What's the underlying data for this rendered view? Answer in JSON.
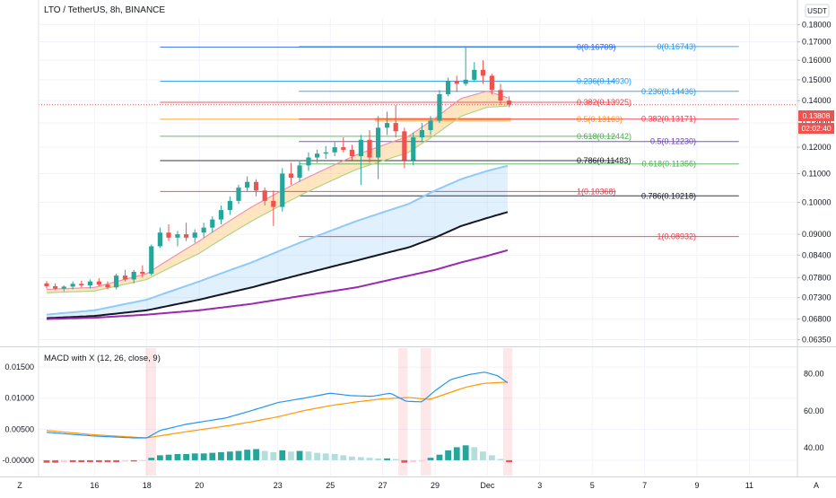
{
  "header": {
    "title": "LTO / TetherUS, 8h, BINANCE",
    "currency": "USDT"
  },
  "macd_panel": {
    "title": "MACD with X (12, 26, close, 9)",
    "left_ticks": [
      "0.01500",
      "0.01000",
      "0.00500",
      "-0.00000"
    ],
    "right_ticks": [
      "80.00",
      "60.00",
      "40.00"
    ]
  },
  "x_axis": {
    "labels": [
      "16",
      "18",
      "20",
      "23",
      "25",
      "27",
      "29",
      "Dec",
      "3",
      "5",
      "7",
      "9",
      "11"
    ],
    "corner_left": "Z",
    "corner_right": "A"
  },
  "price_axis": {
    "ticks": [
      "0.18000",
      "0.17000",
      "0.16000",
      "0.15000",
      "0.14000",
      "0.13000",
      "0.12000",
      "0.11000",
      "0.10000",
      "0.09000",
      "0.08400",
      "0.07800",
      "0.07300",
      "0.06800",
      "0.06350"
    ]
  },
  "price_badges": {
    "last_price": "0.13808",
    "countdown": "02:02:40"
  },
  "fib_set_1": [
    {
      "text": "0(0.16709)",
      "price": 0.16709,
      "color": "#2962ff"
    },
    {
      "text": "0.236(0.14930)",
      "price": 0.1493,
      "color": "#2196f3"
    },
    {
      "text": "0.382(0.13925)",
      "price": 0.13925,
      "color": "#f23645"
    },
    {
      "text": "0.5(0.13163)",
      "price": 0.13163,
      "color": "#ff9800"
    },
    {
      "text": "0.618(0.12442)",
      "price": 0.12442,
      "color": "#4caf50"
    },
    {
      "text": "0.786(0.11483)",
      "price": 0.11483,
      "color": "#131722"
    },
    {
      "text": "1(0.10368)",
      "price": 0.10368,
      "color": "#f23645"
    }
  ],
  "fib_set_2": [
    {
      "text": "0(0.16743)",
      "price": 0.16743,
      "color": "#2196f3"
    },
    {
      "text": "0.236(0.14436)",
      "price": 0.14436,
      "color": "#2196f3"
    },
    {
      "text": "0.382(0.13171)",
      "price": 0.13171,
      "color": "#f23645"
    },
    {
      "text": "0.5(0.12230)",
      "price": 0.1223,
      "color": "#673ab7"
    },
    {
      "text": "0.618(0.11356)",
      "price": 0.11356,
      "color": "#4caf50"
    },
    {
      "text": "0.786(0.10218)",
      "price": 0.10218,
      "color": "#131722"
    },
    {
      "text": "1(0.08932)",
      "price": 0.08932,
      "color": "#f23645"
    }
  ],
  "colors": {
    "up": "#26a69a",
    "down": "#ef5350",
    "macd_line": "#2196f3",
    "signal_line": "#ff9800",
    "ema_light_blue": "#90caf9",
    "ema_black": "#131722",
    "ema_purple": "#9c27b0",
    "highlight_zone": "#ffb74d"
  },
  "chart_data": {
    "type": "candlestick",
    "symbol": "LTO / TetherUS",
    "interval": "8h",
    "exchange": "BINANCE",
    "y_range": [
      0.0625,
      0.184
    ],
    "x_range_days": [
      14.0,
      12.5
    ],
    "highlight_zone": {
      "from": 0.1306,
      "to": 0.1323
    },
    "candles": [
      {
        "t": 14.17,
        "o": 0.0765,
        "h": 0.0771,
        "l": 0.0752,
        "c": 0.0758
      },
      {
        "t": 14.5,
        "o": 0.0758,
        "h": 0.0765,
        "l": 0.0748,
        "c": 0.0752
      },
      {
        "t": 14.83,
        "o": 0.0752,
        "h": 0.076,
        "l": 0.0745,
        "c": 0.0757
      },
      {
        "t": 15.17,
        "o": 0.0757,
        "h": 0.077,
        "l": 0.075,
        "c": 0.0764
      },
      {
        "t": 15.5,
        "o": 0.0764,
        "h": 0.0772,
        "l": 0.0755,
        "c": 0.076
      },
      {
        "t": 15.83,
        "o": 0.076,
        "h": 0.0775,
        "l": 0.0752,
        "c": 0.077
      },
      {
        "t": 16.17,
        "o": 0.077,
        "h": 0.0778,
        "l": 0.0758,
        "c": 0.0762
      },
      {
        "t": 16.5,
        "o": 0.0762,
        "h": 0.077,
        "l": 0.075,
        "c": 0.0755
      },
      {
        "t": 16.83,
        "o": 0.0755,
        "h": 0.079,
        "l": 0.075,
        "c": 0.0785
      },
      {
        "t": 17.17,
        "o": 0.0785,
        "h": 0.08,
        "l": 0.077,
        "c": 0.0775
      },
      {
        "t": 17.5,
        "o": 0.0775,
        "h": 0.08,
        "l": 0.0765,
        "c": 0.0795
      },
      {
        "t": 17.83,
        "o": 0.0795,
        "h": 0.0812,
        "l": 0.078,
        "c": 0.079
      },
      {
        "t": 18.17,
        "o": 0.079,
        "h": 0.087,
        "l": 0.0785,
        "c": 0.0865
      },
      {
        "t": 18.5,
        "o": 0.0865,
        "h": 0.092,
        "l": 0.086,
        "c": 0.0905
      },
      {
        "t": 18.83,
        "o": 0.0905,
        "h": 0.093,
        "l": 0.088,
        "c": 0.089
      },
      {
        "t": 19.17,
        "o": 0.089,
        "h": 0.091,
        "l": 0.0865,
        "c": 0.09
      },
      {
        "t": 19.5,
        "o": 0.09,
        "h": 0.0935,
        "l": 0.088,
        "c": 0.089
      },
      {
        "t": 19.83,
        "o": 0.089,
        "h": 0.0915,
        "l": 0.0875,
        "c": 0.0905
      },
      {
        "t": 20.17,
        "o": 0.0905,
        "h": 0.0935,
        "l": 0.089,
        "c": 0.092
      },
      {
        "t": 20.5,
        "o": 0.092,
        "h": 0.0955,
        "l": 0.0905,
        "c": 0.0945
      },
      {
        "t": 20.83,
        "o": 0.0945,
        "h": 0.099,
        "l": 0.093,
        "c": 0.0975
      },
      {
        "t": 21.17,
        "o": 0.0975,
        "h": 0.102,
        "l": 0.096,
        "c": 0.1005
      },
      {
        "t": 21.5,
        "o": 0.1005,
        "h": 0.106,
        "l": 0.0995,
        "c": 0.105
      },
      {
        "t": 21.83,
        "o": 0.105,
        "h": 0.109,
        "l": 0.1035,
        "c": 0.107
      },
      {
        "t": 22.17,
        "o": 0.107,
        "h": 0.108,
        "l": 0.102,
        "c": 0.104
      },
      {
        "t": 22.5,
        "o": 0.104,
        "h": 0.105,
        "l": 0.099,
        "c": 0.1005
      },
      {
        "t": 22.83,
        "o": 0.1005,
        "h": 0.104,
        "l": 0.0925,
        "c": 0.0985
      },
      {
        "t": 23.17,
        "o": 0.0985,
        "h": 0.112,
        "l": 0.097,
        "c": 0.11
      },
      {
        "t": 23.5,
        "o": 0.11,
        "h": 0.114,
        "l": 0.106,
        "c": 0.1085
      },
      {
        "t": 23.83,
        "o": 0.1085,
        "h": 0.115,
        "l": 0.107,
        "c": 0.113
      },
      {
        "t": 24.17,
        "o": 0.113,
        "h": 0.118,
        "l": 0.111,
        "c": 0.116
      },
      {
        "t": 24.5,
        "o": 0.116,
        "h": 0.119,
        "l": 0.114,
        "c": 0.1175
      },
      {
        "t": 24.83,
        "o": 0.1175,
        "h": 0.1205,
        "l": 0.1155,
        "c": 0.118
      },
      {
        "t": 25.17,
        "o": 0.118,
        "h": 0.122,
        "l": 0.1165,
        "c": 0.12
      },
      {
        "t": 25.5,
        "o": 0.12,
        "h": 0.124,
        "l": 0.118,
        "c": 0.119
      },
      {
        "t": 25.83,
        "o": 0.119,
        "h": 0.121,
        "l": 0.115,
        "c": 0.1165
      },
      {
        "t": 26.17,
        "o": 0.1165,
        "h": 0.125,
        "l": 0.106,
        "c": 0.123
      },
      {
        "t": 26.5,
        "o": 0.123,
        "h": 0.127,
        "l": 0.114,
        "c": 0.116
      },
      {
        "t": 26.83,
        "o": 0.116,
        "h": 0.133,
        "l": 0.108,
        "c": 0.128
      },
      {
        "t": 27.17,
        "o": 0.128,
        "h": 0.135,
        "l": 0.125,
        "c": 0.13
      },
      {
        "t": 27.5,
        "o": 0.13,
        "h": 0.138,
        "l": 0.124,
        "c": 0.1265
      },
      {
        "t": 27.83,
        "o": 0.1265,
        "h": 0.128,
        "l": 0.112,
        "c": 0.115
      },
      {
        "t": 28.17,
        "o": 0.115,
        "h": 0.126,
        "l": 0.113,
        "c": 0.124
      },
      {
        "t": 28.5,
        "o": 0.124,
        "h": 0.13,
        "l": 0.122,
        "c": 0.127
      },
      {
        "t": 28.83,
        "o": 0.127,
        "h": 0.133,
        "l": 0.125,
        "c": 0.131
      },
      {
        "t": 29.17,
        "o": 0.131,
        "h": 0.145,
        "l": 0.13,
        "c": 0.143
      },
      {
        "t": 29.5,
        "o": 0.143,
        "h": 0.151,
        "l": 0.142,
        "c": 0.1495
      },
      {
        "t": 29.83,
        "o": 0.1495,
        "h": 0.152,
        "l": 0.144,
        "c": 0.148
      },
      {
        "t": 30.17,
        "o": 0.148,
        "h": 0.1671,
        "l": 0.147,
        "c": 0.15
      },
      {
        "t": 30.5,
        "o": 0.15,
        "h": 0.159,
        "l": 0.149,
        "c": 0.155
      },
      {
        "t": 30.83,
        "o": 0.155,
        "h": 0.16,
        "l": 0.148,
        "c": 0.152
      },
      {
        "t": 31.17,
        "o": 0.152,
        "h": 0.153,
        "l": 0.143,
        "c": 0.145
      },
      {
        "t": 31.5,
        "o": 0.145,
        "h": 0.148,
        "l": 0.138,
        "c": 0.14
      },
      {
        "t": 31.83,
        "o": 0.14,
        "h": 0.142,
        "l": 0.137,
        "c": 0.1381
      }
    ],
    "ema_orange": [
      [
        14.17,
        0.075
      ],
      [
        16.0,
        0.0755
      ],
      [
        18.0,
        0.079
      ],
      [
        20.0,
        0.088
      ],
      [
        22.0,
        0.0985
      ],
      [
        24.0,
        0.108
      ],
      [
        26.0,
        0.117
      ],
      [
        28.0,
        0.1245
      ],
      [
        29.0,
        0.132
      ],
      [
        30.0,
        0.141
      ],
      [
        31.0,
        0.1445
      ],
      [
        31.83,
        0.141
      ]
    ],
    "ema_green": [
      [
        14.17,
        0.0742
      ],
      [
        16.0,
        0.0746
      ],
      [
        18.0,
        0.0775
      ],
      [
        20.0,
        0.0845
      ],
      [
        22.0,
        0.094
      ],
      [
        24.0,
        0.103
      ],
      [
        26.0,
        0.1115
      ],
      [
        28.0,
        0.118
      ],
      [
        29.0,
        0.125
      ],
      [
        30.0,
        0.133
      ],
      [
        31.0,
        0.137
      ],
      [
        31.83,
        0.1375
      ]
    ],
    "ema_light_blue": [
      [
        14.17,
        0.069
      ],
      [
        16.0,
        0.07
      ],
      [
        18.0,
        0.0725
      ],
      [
        20.0,
        0.077
      ],
      [
        22.0,
        0.082
      ],
      [
        24.0,
        0.088
      ],
      [
        26.0,
        0.094
      ],
      [
        28.0,
        0.0995
      ],
      [
        29.0,
        0.104
      ],
      [
        30.0,
        0.108
      ],
      [
        31.0,
        0.111
      ],
      [
        31.83,
        0.113
      ]
    ],
    "ema_black": [
      [
        14.17,
        0.0682
      ],
      [
        16.0,
        0.0687
      ],
      [
        18.0,
        0.07
      ],
      [
        20.0,
        0.0725
      ],
      [
        22.0,
        0.0755
      ],
      [
        24.0,
        0.079
      ],
      [
        26.0,
        0.0825
      ],
      [
        28.0,
        0.0862
      ],
      [
        29.0,
        0.089
      ],
      [
        30.0,
        0.0925
      ],
      [
        31.0,
        0.095
      ],
      [
        31.83,
        0.097
      ]
    ],
    "ema_purple": [
      [
        14.17,
        0.068
      ],
      [
        16.0,
        0.0683
      ],
      [
        18.0,
        0.069
      ],
      [
        20.0,
        0.07
      ],
      [
        22.0,
        0.0715
      ],
      [
        24.0,
        0.0735
      ],
      [
        26.0,
        0.0755
      ],
      [
        28.0,
        0.0785
      ],
      [
        29.0,
        0.08
      ],
      [
        30.0,
        0.082
      ],
      [
        31.0,
        0.0838
      ],
      [
        31.83,
        0.0855
      ]
    ],
    "macd_range": [
      -0.0016,
      0.0169
    ],
    "osc_range": [
      28,
      90
    ],
    "macd_line": [
      [
        14.17,
        0.0045
      ],
      [
        16.0,
        0.0039
      ],
      [
        17.5,
        0.0036
      ],
      [
        18.0,
        0.0036
      ],
      [
        18.5,
        0.0048
      ],
      [
        19.5,
        0.0058
      ],
      [
        21.0,
        0.0068
      ],
      [
        22.0,
        0.008
      ],
      [
        23.0,
        0.0093
      ],
      [
        24.0,
        0.01
      ],
      [
        25.0,
        0.0108
      ],
      [
        25.8,
        0.0104
      ],
      [
        26.6,
        0.0103
      ],
      [
        27.3,
        0.0108
      ],
      [
        27.9,
        0.0095
      ],
      [
        28.5,
        0.0094
      ],
      [
        29.0,
        0.0112
      ],
      [
        29.6,
        0.013
      ],
      [
        30.3,
        0.0138
      ],
      [
        30.9,
        0.0142
      ],
      [
        31.4,
        0.0136
      ],
      [
        31.83,
        0.0123
      ]
    ],
    "signal_line": [
      [
        14.17,
        0.0048
      ],
      [
        16.0,
        0.0041
      ],
      [
        18.0,
        0.0036
      ],
      [
        19.5,
        0.0046
      ],
      [
        21.0,
        0.0055
      ],
      [
        22.0,
        0.0062
      ],
      [
        23.0,
        0.007
      ],
      [
        24.0,
        0.008
      ],
      [
        25.0,
        0.0088
      ],
      [
        26.0,
        0.0094
      ],
      [
        27.0,
        0.0099
      ],
      [
        28.0,
        0.0101
      ],
      [
        28.8,
        0.0098
      ],
      [
        29.5,
        0.0108
      ],
      [
        30.2,
        0.0118
      ],
      [
        30.9,
        0.0124
      ],
      [
        31.83,
        0.0126
      ]
    ],
    "histogram": [
      {
        "t": 14.17,
        "v": -0.0004
      },
      {
        "t": 14.5,
        "v": -0.0004
      },
      {
        "t": 14.83,
        "v": -0.0003
      },
      {
        "t": 15.17,
        "v": -0.0003
      },
      {
        "t": 15.5,
        "v": -0.0003
      },
      {
        "t": 15.83,
        "v": -0.0003
      },
      {
        "t": 16.17,
        "v": -0.0003
      },
      {
        "t": 16.5,
        "v": -0.0003
      },
      {
        "t": 16.83,
        "v": -0.0003
      },
      {
        "t": 17.17,
        "v": -0.0002
      },
      {
        "t": 17.5,
        "v": -0.0002
      },
      {
        "t": 17.83,
        "v": -0.0001
      },
      {
        "t": 18.17,
        "v": 0.0004
      },
      {
        "t": 18.5,
        "v": 0.0008
      },
      {
        "t": 18.83,
        "v": 0.0009
      },
      {
        "t": 19.17,
        "v": 0.001
      },
      {
        "t": 19.5,
        "v": 0.001
      },
      {
        "t": 19.83,
        "v": 0.0011
      },
      {
        "t": 20.17,
        "v": 0.0011
      },
      {
        "t": 20.5,
        "v": 0.0012
      },
      {
        "t": 20.83,
        "v": 0.0013
      },
      {
        "t": 21.17,
        "v": 0.0014
      },
      {
        "t": 21.5,
        "v": 0.0015
      },
      {
        "t": 21.83,
        "v": 0.0017
      },
      {
        "t": 22.17,
        "v": 0.0018
      },
      {
        "t": 22.5,
        "v": 0.0015
      },
      {
        "t": 22.83,
        "v": 0.0013
      },
      {
        "t": 23.17,
        "v": 0.0016
      },
      {
        "t": 23.5,
        "v": 0.0014
      },
      {
        "t": 23.83,
        "v": 0.0015
      },
      {
        "t": 24.17,
        "v": 0.0014
      },
      {
        "t": 24.5,
        "v": 0.0012
      },
      {
        "t": 24.83,
        "v": 0.0011
      },
      {
        "t": 25.17,
        "v": 0.001
      },
      {
        "t": 25.5,
        "v": 0.0008
      },
      {
        "t": 25.83,
        "v": 0.0006
      },
      {
        "t": 26.17,
        "v": 0.0005
      },
      {
        "t": 26.5,
        "v": 0.0004
      },
      {
        "t": 26.83,
        "v": 0.0003
      },
      {
        "t": 27.17,
        "v": 0.0003
      },
      {
        "t": 27.5,
        "v": 0.0002
      },
      {
        "t": 27.83,
        "v": -0.0004
      },
      {
        "t": 28.17,
        "v": -0.0003
      },
      {
        "t": 28.5,
        "v": -0.0002
      },
      {
        "t": 28.83,
        "v": 0.0004
      },
      {
        "t": 29.17,
        "v": 0.0009
      },
      {
        "t": 29.5,
        "v": 0.0016
      },
      {
        "t": 29.83,
        "v": 0.0021
      },
      {
        "t": 30.17,
        "v": 0.0024
      },
      {
        "t": 30.5,
        "v": 0.0021
      },
      {
        "t": 30.83,
        "v": 0.0014
      },
      {
        "t": 31.17,
        "v": 0.0008
      },
      {
        "t": 31.5,
        "v": 0.0002
      },
      {
        "t": 31.83,
        "v": -0.0003
      }
    ],
    "cross_highlights": [
      [
        17.95,
        18.35
      ],
      [
        27.6,
        27.95
      ],
      [
        28.45,
        28.85
      ],
      [
        31.6,
        31.95
      ]
    ]
  }
}
